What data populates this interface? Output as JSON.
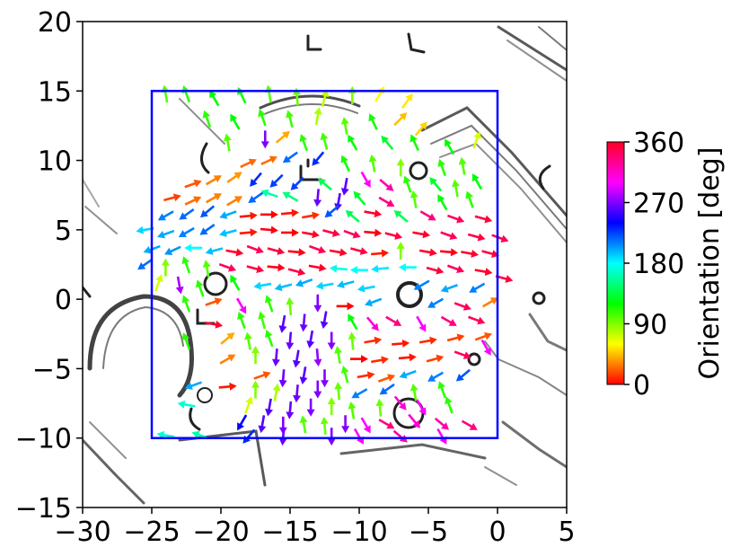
{
  "chart_data": {
    "type": "quiver",
    "title": "",
    "xlabel": "",
    "ylabel": "",
    "xlim": [
      -30,
      5
    ],
    "ylim": [
      -15,
      20
    ],
    "x_ticks": [
      -30,
      -25,
      -20,
      -15,
      -10,
      -5,
      0,
      5
    ],
    "y_ticks": [
      -15,
      -10,
      -5,
      0,
      5,
      10,
      15,
      20
    ],
    "x_tick_labels": [
      "−30",
      "−25",
      "−20",
      "−15",
      "−10",
      "−5",
      "0",
      "5"
    ],
    "y_tick_labels": [
      "−15",
      "−10",
      "−5",
      "0",
      "5",
      "10",
      "15",
      "20"
    ],
    "grid": false,
    "background": "grayscale occupancy map",
    "region": {
      "x": [
        -25,
        0
      ],
      "y": [
        -10,
        15
      ],
      "color": "#0000ff"
    },
    "colorbar": {
      "label": "Orientation [deg]",
      "colormap": "hsv",
      "range": [
        0,
        360
      ],
      "ticks": [
        0,
        90,
        180,
        270,
        360
      ],
      "tick_labels": [
        "0",
        "90",
        "180",
        "270",
        "360"
      ],
      "placement": "right"
    },
    "arrows": [
      {
        "x": -24.0,
        "y": 14.8,
        "deg": 100
      },
      {
        "x": -22.5,
        "y": 14.8,
        "deg": 110
      },
      {
        "x": -20.5,
        "y": 14.5,
        "deg": 120
      },
      {
        "x": -18.5,
        "y": 14.7,
        "deg": 115
      },
      {
        "x": -16.5,
        "y": 14.8,
        "deg": 100
      },
      {
        "x": -14.5,
        "y": 14.6,
        "deg": 95
      },
      {
        "x": -12.5,
        "y": 14.5,
        "deg": 75
      },
      {
        "x": -10.5,
        "y": 14.7,
        "deg": 90
      },
      {
        "x": -8.5,
        "y": 14.8,
        "deg": 60
      },
      {
        "x": -6.5,
        "y": 14.3,
        "deg": 55
      },
      {
        "x": -21.0,
        "y": 13.0,
        "deg": 110
      },
      {
        "x": -19.0,
        "y": 12.8,
        "deg": 120
      },
      {
        "x": -17.0,
        "y": 13.1,
        "deg": 110
      },
      {
        "x": -15.0,
        "y": 13.0,
        "deg": 105
      },
      {
        "x": -13.0,
        "y": 13.2,
        "deg": 80
      },
      {
        "x": -11.0,
        "y": 12.5,
        "deg": 100
      },
      {
        "x": -9.0,
        "y": 12.8,
        "deg": 115
      },
      {
        "x": -7.0,
        "y": 13.0,
        "deg": 45
      },
      {
        "x": -5.5,
        "y": 12.3,
        "deg": 50
      },
      {
        "x": -19.5,
        "y": 11.3,
        "deg": 100
      },
      {
        "x": -16.8,
        "y": 11.5,
        "deg": 270
      },
      {
        "x": -15.5,
        "y": 11.7,
        "deg": 40
      },
      {
        "x": -14.0,
        "y": 11.3,
        "deg": 110
      },
      {
        "x": -12.5,
        "y": 11.4,
        "deg": 105
      },
      {
        "x": -10.5,
        "y": 11.3,
        "deg": 120
      },
      {
        "x": -8.0,
        "y": 11.3,
        "deg": 130
      },
      {
        "x": -6.0,
        "y": 11.3,
        "deg": 115
      },
      {
        "x": -3.5,
        "y": 11.0,
        "deg": 120
      },
      {
        "x": -1.5,
        "y": 11.5,
        "deg": 70
      },
      {
        "x": -18.0,
        "y": 9.8,
        "deg": 25
      },
      {
        "x": -16.5,
        "y": 10.0,
        "deg": 25
      },
      {
        "x": -15.0,
        "y": 10.2,
        "deg": 215
      },
      {
        "x": -13.0,
        "y": 10.1,
        "deg": 230
      },
      {
        "x": -11.0,
        "y": 9.8,
        "deg": 115
      },
      {
        "x": -9.0,
        "y": 9.8,
        "deg": 100
      },
      {
        "x": -7.0,
        "y": 9.5,
        "deg": 90
      },
      {
        "x": -4.0,
        "y": 9.5,
        "deg": 110
      },
      {
        "x": -2.5,
        "y": 9.6,
        "deg": 100
      },
      {
        "x": -22.0,
        "y": 8.3,
        "deg": 20
      },
      {
        "x": -20.5,
        "y": 8.6,
        "deg": 30
      },
      {
        "x": -19.0,
        "y": 8.8,
        "deg": 35
      },
      {
        "x": -17.5,
        "y": 8.6,
        "deg": 230
      },
      {
        "x": -16.0,
        "y": 8.5,
        "deg": 225
      },
      {
        "x": -14.5,
        "y": 8.3,
        "deg": 225
      },
      {
        "x": -12.5,
        "y": 8.3,
        "deg": 140
      },
      {
        "x": -11.0,
        "y": 8.1,
        "deg": 260
      },
      {
        "x": -9.5,
        "y": 8.6,
        "deg": 300
      },
      {
        "x": -8.0,
        "y": 8.2,
        "deg": 320
      },
      {
        "x": -6.5,
        "y": 8.3,
        "deg": 110
      },
      {
        "x": -4.5,
        "y": 8.3,
        "deg": 130
      },
      {
        "x": -3.0,
        "y": 8.0,
        "deg": 100
      },
      {
        "x": -1.5,
        "y": 8.5,
        "deg": 120
      },
      {
        "x": -23.5,
        "y": 7.3,
        "deg": 15
      },
      {
        "x": -22.0,
        "y": 7.1,
        "deg": 25
      },
      {
        "x": -20.5,
        "y": 7.3,
        "deg": 30
      },
      {
        "x": -19.0,
        "y": 7.1,
        "deg": 30
      },
      {
        "x": -17.5,
        "y": 7.3,
        "deg": 215
      },
      {
        "x": -16.5,
        "y": 7.6,
        "deg": 160
      },
      {
        "x": -15.0,
        "y": 7.4,
        "deg": 150
      },
      {
        "x": -13.0,
        "y": 7.3,
        "deg": 265
      },
      {
        "x": -11.5,
        "y": 7.0,
        "deg": 260
      },
      {
        "x": -10.0,
        "y": 7.3,
        "deg": 130
      },
      {
        "x": -8.0,
        "y": 7.0,
        "deg": 330
      },
      {
        "x": -6.0,
        "y": 7.2,
        "deg": 100
      },
      {
        "x": -4.0,
        "y": 7.0,
        "deg": 120
      },
      {
        "x": -2.0,
        "y": 7.2,
        "deg": 110
      },
      {
        "x": -24.0,
        "y": 6.0,
        "deg": 210
      },
      {
        "x": -22.5,
        "y": 6.1,
        "deg": 215
      },
      {
        "x": -21.0,
        "y": 6.3,
        "deg": 220
      },
      {
        "x": -19.5,
        "y": 6.1,
        "deg": 200
      },
      {
        "x": -18.0,
        "y": 6.0,
        "deg": 5
      },
      {
        "x": -16.5,
        "y": 6.1,
        "deg": 0
      },
      {
        "x": -15.0,
        "y": 6.2,
        "deg": 5
      },
      {
        "x": -13.5,
        "y": 6.0,
        "deg": 10
      },
      {
        "x": -12.0,
        "y": 6.3,
        "deg": 220
      },
      {
        "x": -10.5,
        "y": 6.0,
        "deg": 140
      },
      {
        "x": -9.0,
        "y": 6.2,
        "deg": 350
      },
      {
        "x": -7.0,
        "y": 6.0,
        "deg": 140
      },
      {
        "x": -5.0,
        "y": 6.0,
        "deg": 330
      },
      {
        "x": -3.0,
        "y": 5.8,
        "deg": 340
      },
      {
        "x": -1.0,
        "y": 5.8,
        "deg": 345
      },
      {
        "x": -25.5,
        "y": 5.0,
        "deg": 190
      },
      {
        "x": -24.0,
        "y": 4.7,
        "deg": 200
      },
      {
        "x": -22.5,
        "y": 4.8,
        "deg": 210
      },
      {
        "x": -21.0,
        "y": 5.0,
        "deg": 215
      },
      {
        "x": -19.5,
        "y": 4.8,
        "deg": 195
      },
      {
        "x": -18.0,
        "y": 4.8,
        "deg": 5
      },
      {
        "x": -16.5,
        "y": 5.0,
        "deg": 355
      },
      {
        "x": -15.0,
        "y": 4.8,
        "deg": 0
      },
      {
        "x": -13.5,
        "y": 4.7,
        "deg": 350
      },
      {
        "x": -12.0,
        "y": 4.8,
        "deg": 345
      },
      {
        "x": -10.5,
        "y": 4.7,
        "deg": 340
      },
      {
        "x": -9.0,
        "y": 4.8,
        "deg": 355
      },
      {
        "x": -7.5,
        "y": 4.6,
        "deg": 345
      },
      {
        "x": -5.5,
        "y": 4.7,
        "deg": 350
      },
      {
        "x": -3.5,
        "y": 4.6,
        "deg": 340
      },
      {
        "x": -1.5,
        "y": 4.5,
        "deg": 345
      },
      {
        "x": 0.2,
        "y": 4.4,
        "deg": 340
      },
      {
        "x": -25.0,
        "y": 3.6,
        "deg": 200
      },
      {
        "x": -23.5,
        "y": 3.5,
        "deg": 205
      },
      {
        "x": -22.0,
        "y": 3.7,
        "deg": 180
      },
      {
        "x": -20.5,
        "y": 3.5,
        "deg": 195
      },
      {
        "x": -19.0,
        "y": 3.4,
        "deg": 350
      },
      {
        "x": -17.5,
        "y": 3.6,
        "deg": 340
      },
      {
        "x": -16.0,
        "y": 3.5,
        "deg": 345
      },
      {
        "x": -14.5,
        "y": 3.4,
        "deg": 355
      },
      {
        "x": -13.0,
        "y": 3.6,
        "deg": 340
      },
      {
        "x": -11.5,
        "y": 3.4,
        "deg": 350
      },
      {
        "x": -10.0,
        "y": 3.5,
        "deg": 345
      },
      {
        "x": -8.5,
        "y": 3.3,
        "deg": 5
      },
      {
        "x": -7.0,
        "y": 3.5,
        "deg": 90
      },
      {
        "x": -5.0,
        "y": 3.4,
        "deg": 350
      },
      {
        "x": -3.5,
        "y": 3.4,
        "deg": 355
      },
      {
        "x": -2.0,
        "y": 3.3,
        "deg": 350
      },
      {
        "x": -0.5,
        "y": 3.3,
        "deg": 345
      },
      {
        "x": -25.5,
        "y": 2.5,
        "deg": 215
      },
      {
        "x": -24.0,
        "y": 2.3,
        "deg": 90
      },
      {
        "x": -22.5,
        "y": 2.5,
        "deg": 110
      },
      {
        "x": -21.0,
        "y": 2.2,
        "deg": 100
      },
      {
        "x": -19.5,
        "y": 2.3,
        "deg": 340
      },
      {
        "x": -17.5,
        "y": 2.2,
        "deg": 345
      },
      {
        "x": -16.0,
        "y": 2.3,
        "deg": 355
      },
      {
        "x": -14.5,
        "y": 2.0,
        "deg": 345
      },
      {
        "x": -13.0,
        "y": 2.3,
        "deg": 350
      },
      {
        "x": -11.5,
        "y": 2.2,
        "deg": 175
      },
      {
        "x": -10.0,
        "y": 2.1,
        "deg": 180
      },
      {
        "x": -8.5,
        "y": 2.2,
        "deg": 185
      },
      {
        "x": -6.5,
        "y": 2.3,
        "deg": 180
      },
      {
        "x": -4.5,
        "y": 2.1,
        "deg": 345
      },
      {
        "x": -3.0,
        "y": 2.2,
        "deg": 340
      },
      {
        "x": -1.0,
        "y": 2.0,
        "deg": 350
      },
      {
        "x": 0.5,
        "y": 1.5,
        "deg": 345
      },
      {
        "x": -24.5,
        "y": 1.2,
        "deg": 70
      },
      {
        "x": -23.0,
        "y": 1.0,
        "deg": 280
      },
      {
        "x": -21.5,
        "y": 0.8,
        "deg": 110
      },
      {
        "x": -19.0,
        "y": 1.2,
        "deg": 120
      },
      {
        "x": -17.0,
        "y": 1.0,
        "deg": 190
      },
      {
        "x": -15.5,
        "y": 0.9,
        "deg": 195
      },
      {
        "x": -14.0,
        "y": 1.2,
        "deg": 200
      },
      {
        "x": -12.5,
        "y": 1.0,
        "deg": 190
      },
      {
        "x": -11.0,
        "y": 1.1,
        "deg": 195
      },
      {
        "x": -9.5,
        "y": 0.8,
        "deg": 190
      },
      {
        "x": -5.5,
        "y": 1.0,
        "deg": 210
      },
      {
        "x": -3.5,
        "y": 0.8,
        "deg": 200
      },
      {
        "x": -1.5,
        "y": 0.8,
        "deg": 210
      },
      {
        "x": -22.5,
        "y": -0.3,
        "deg": 110
      },
      {
        "x": -20.5,
        "y": -0.2,
        "deg": 20
      },
      {
        "x": -18.5,
        "y": -0.5,
        "deg": 300
      },
      {
        "x": -16.5,
        "y": -0.3,
        "deg": 110
      },
      {
        "x": -15.0,
        "y": -0.5,
        "deg": 95
      },
      {
        "x": -13.0,
        "y": -0.3,
        "deg": 270
      },
      {
        "x": -11.0,
        "y": -0.5,
        "deg": 0
      },
      {
        "x": -9.0,
        "y": -0.2,
        "deg": 200
      },
      {
        "x": -4.5,
        "y": -0.3,
        "deg": 210
      },
      {
        "x": -2.5,
        "y": -0.5,
        "deg": 340
      },
      {
        "x": -0.5,
        "y": -0.2,
        "deg": 30
      },
      {
        "x": -20.5,
        "y": -1.8,
        "deg": 350
      },
      {
        "x": -18.5,
        "y": -1.5,
        "deg": 110
      },
      {
        "x": -17.0,
        "y": -1.5,
        "deg": 105
      },
      {
        "x": -15.5,
        "y": -1.8,
        "deg": 260
      },
      {
        "x": -14.0,
        "y": -1.7,
        "deg": 265
      },
      {
        "x": -12.5,
        "y": -1.5,
        "deg": 260
      },
      {
        "x": -10.5,
        "y": -1.6,
        "deg": 120
      },
      {
        "x": -9.0,
        "y": -1.8,
        "deg": 310
      },
      {
        "x": -7.5,
        "y": -1.6,
        "deg": 330
      },
      {
        "x": -5.5,
        "y": -1.8,
        "deg": 300
      },
      {
        "x": -3.5,
        "y": -1.6,
        "deg": 330
      },
      {
        "x": -1.5,
        "y": -1.5,
        "deg": 340
      },
      {
        "x": -22.5,
        "y": -3.0,
        "deg": 110
      },
      {
        "x": -19.5,
        "y": -2.8,
        "deg": 40
      },
      {
        "x": -18.0,
        "y": -3.0,
        "deg": 100
      },
      {
        "x": -16.5,
        "y": -2.8,
        "deg": 110
      },
      {
        "x": -15.0,
        "y": -3.0,
        "deg": 265
      },
      {
        "x": -13.5,
        "y": -2.9,
        "deg": 260
      },
      {
        "x": -12.0,
        "y": -3.0,
        "deg": 270
      },
      {
        "x": -10.5,
        "y": -3.0,
        "deg": 95
      },
      {
        "x": -9.0,
        "y": -3.0,
        "deg": 10
      },
      {
        "x": -7.0,
        "y": -3.2,
        "deg": 5
      },
      {
        "x": -5.0,
        "y": -3.0,
        "deg": 10
      },
      {
        "x": -3.0,
        "y": -2.8,
        "deg": 15
      },
      {
        "x": -1.0,
        "y": -2.7,
        "deg": 20
      },
      {
        "x": -19.5,
        "y": -4.3,
        "deg": 30
      },
      {
        "x": -17.5,
        "y": -4.0,
        "deg": 90
      },
      {
        "x": -16.0,
        "y": -4.2,
        "deg": 265
      },
      {
        "x": -14.5,
        "y": -4.3,
        "deg": 260
      },
      {
        "x": -13.0,
        "y": -4.2,
        "deg": 275
      },
      {
        "x": -11.5,
        "y": -4.0,
        "deg": 100
      },
      {
        "x": -10.0,
        "y": -4.3,
        "deg": 0
      },
      {
        "x": -8.5,
        "y": -4.4,
        "deg": 10
      },
      {
        "x": -6.5,
        "y": -4.2,
        "deg": 5
      },
      {
        "x": -4.5,
        "y": -4.3,
        "deg": 15
      },
      {
        "x": -2.5,
        "y": -4.0,
        "deg": 340
      },
      {
        "x": -0.8,
        "y": -3.5,
        "deg": 300
      },
      {
        "x": -17.0,
        "y": -5.5,
        "deg": 20
      },
      {
        "x": -15.5,
        "y": -5.7,
        "deg": 265
      },
      {
        "x": -14.0,
        "y": -5.5,
        "deg": 260
      },
      {
        "x": -12.5,
        "y": -5.7,
        "deg": 270
      },
      {
        "x": -11.0,
        "y": -5.4,
        "deg": 105
      },
      {
        "x": -9.5,
        "y": -5.5,
        "deg": 10
      },
      {
        "x": -8.0,
        "y": -5.7,
        "deg": 20
      },
      {
        "x": -6.5,
        "y": -5.4,
        "deg": 200
      },
      {
        "x": -4.5,
        "y": -5.6,
        "deg": 210
      },
      {
        "x": -2.5,
        "y": -5.5,
        "deg": 220
      },
      {
        "x": -22.0,
        "y": -6.2,
        "deg": 200
      },
      {
        "x": -19.5,
        "y": -6.3,
        "deg": 5
      },
      {
        "x": -17.5,
        "y": -6.5,
        "deg": 90
      },
      {
        "x": -16.0,
        "y": -6.7,
        "deg": 80
      },
      {
        "x": -14.5,
        "y": -6.8,
        "deg": 265
      },
      {
        "x": -13.0,
        "y": -6.5,
        "deg": 270
      },
      {
        "x": -11.5,
        "y": -6.6,
        "deg": 95
      },
      {
        "x": -10.0,
        "y": -6.8,
        "deg": 210
      },
      {
        "x": -8.0,
        "y": -6.5,
        "deg": 215
      },
      {
        "x": -6.0,
        "y": -6.7,
        "deg": 100
      },
      {
        "x": -4.0,
        "y": -6.5,
        "deg": 110
      },
      {
        "x": -22.5,
        "y": -7.6,
        "deg": 170
      },
      {
        "x": -18.0,
        "y": -7.6,
        "deg": 70
      },
      {
        "x": -16.5,
        "y": -7.8,
        "deg": 260
      },
      {
        "x": -15.0,
        "y": -8.0,
        "deg": 265
      },
      {
        "x": -13.5,
        "y": -7.8,
        "deg": 270
      },
      {
        "x": -12.0,
        "y": -7.7,
        "deg": 90
      },
      {
        "x": -10.5,
        "y": -8.0,
        "deg": 100
      },
      {
        "x": -8.5,
        "y": -7.8,
        "deg": 95
      },
      {
        "x": -7.0,
        "y": -7.5,
        "deg": 310
      },
      {
        "x": -5.5,
        "y": -7.8,
        "deg": 300
      },
      {
        "x": -3.5,
        "y": -7.6,
        "deg": 110
      },
      {
        "x": -18.5,
        "y": -8.9,
        "deg": 240
      },
      {
        "x": -17.0,
        "y": -9.0,
        "deg": 260
      },
      {
        "x": -15.5,
        "y": -9.1,
        "deg": 270
      },
      {
        "x": -14.0,
        "y": -9.0,
        "deg": 100
      },
      {
        "x": -12.5,
        "y": -9.1,
        "deg": 95
      },
      {
        "x": -11.0,
        "y": -9.0,
        "deg": 270
      },
      {
        "x": -9.5,
        "y": -9.1,
        "deg": 300
      },
      {
        "x": -8.0,
        "y": -9.0,
        "deg": 330
      },
      {
        "x": -6.0,
        "y": -8.8,
        "deg": 310
      },
      {
        "x": -4.0,
        "y": -9.0,
        "deg": 320
      },
      {
        "x": -2.0,
        "y": -9.1,
        "deg": 330
      },
      {
        "x": -24.0,
        "y": -9.8,
        "deg": 170
      },
      {
        "x": -21.5,
        "y": -9.8,
        "deg": 160
      },
      {
        "x": -18.0,
        "y": -9.9,
        "deg": 230
      },
      {
        "x": -15.5,
        "y": -9.9,
        "deg": 265
      },
      {
        "x": -12.0,
        "y": -9.9,
        "deg": 270
      },
      {
        "x": -10.0,
        "y": -9.9,
        "deg": 300
      },
      {
        "x": -7.0,
        "y": -9.9,
        "deg": 320
      },
      {
        "x": -4.0,
        "y": -9.9,
        "deg": 300
      }
    ]
  }
}
